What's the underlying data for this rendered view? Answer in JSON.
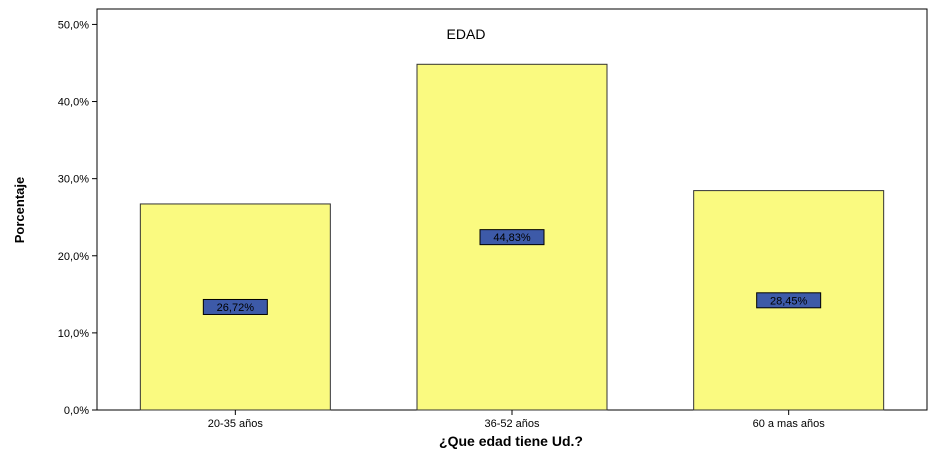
{
  "chart_data": {
    "type": "bar",
    "title": "EDAD",
    "xlabel": "¿Que edad tiene Ud.?",
    "ylabel": "Porcentaje",
    "categories": [
      "20-35 años",
      "36-52 años",
      "60 a mas años"
    ],
    "values": [
      26.72,
      44.83,
      28.45
    ],
    "data_labels": [
      "26,72%",
      "44,83%",
      "28,45%"
    ],
    "ylim": [
      0,
      52
    ],
    "y_ticks": [
      0,
      10,
      20,
      30,
      40,
      50
    ],
    "y_tick_labels": [
      "0,0%",
      "10,0%",
      "20,0%",
      "30,0%",
      "40,0%",
      "50,0%"
    ],
    "grid": false,
    "colors": {
      "bar_fill": "#fafa80",
      "bar_stroke": "#333333",
      "label_fill": "#3d5aa8",
      "label_stroke": "#000000"
    }
  }
}
